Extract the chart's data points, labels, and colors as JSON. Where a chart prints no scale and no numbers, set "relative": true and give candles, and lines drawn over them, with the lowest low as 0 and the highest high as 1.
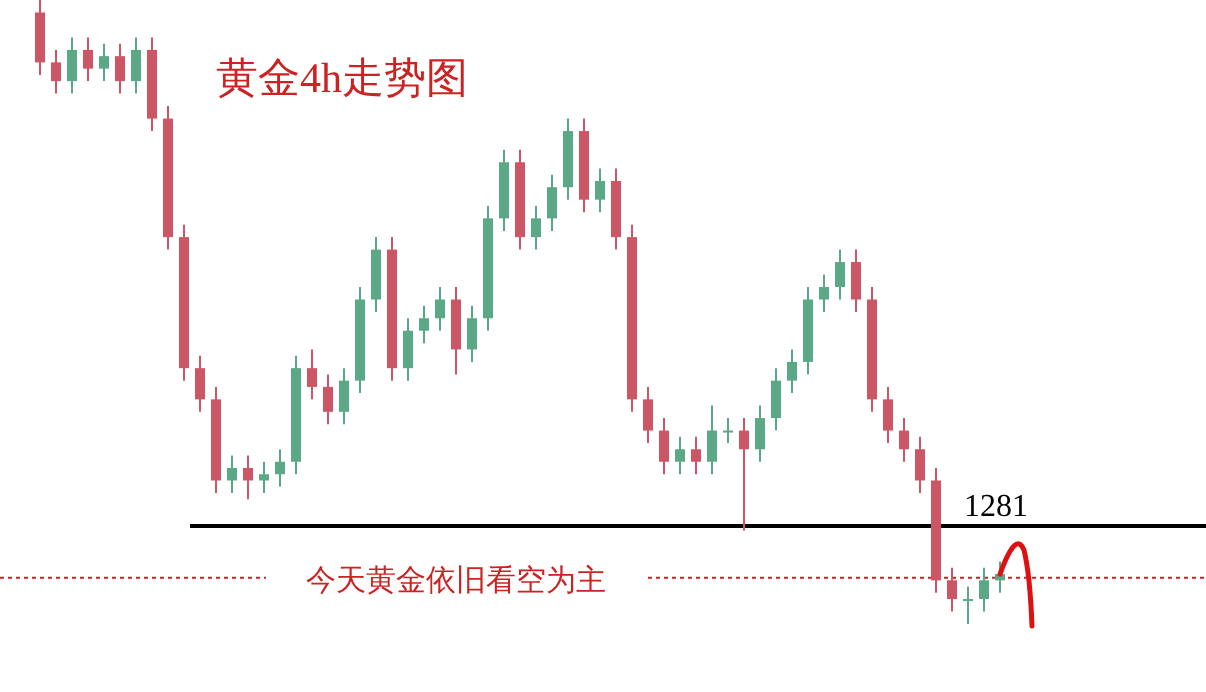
{
  "chart_data": {
    "type": "candlestick",
    "title": "黄金4h走势图",
    "relative": true,
    "categories": [
      null,
      null,
      null,
      null,
      null,
      null,
      null,
      null,
      null,
      null,
      null,
      null,
      null,
      null,
      null,
      null,
      null,
      null,
      null,
      null,
      null,
      null,
      null,
      null,
      null,
      null,
      null,
      null,
      null,
      null,
      null,
      null,
      null,
      null,
      null,
      null,
      null,
      null,
      null,
      null,
      null,
      null,
      null,
      null,
      null,
      null,
      null,
      null,
      null,
      null,
      null,
      null,
      null,
      null,
      null,
      null,
      null,
      null,
      null,
      null,
      null
    ],
    "ohlc": [
      [
        0.98,
        1.0,
        0.88,
        0.9
      ],
      [
        0.9,
        0.92,
        0.85,
        0.87
      ],
      [
        0.87,
        0.94,
        0.85,
        0.92
      ],
      [
        0.92,
        0.94,
        0.87,
        0.89
      ],
      [
        0.89,
        0.93,
        0.87,
        0.91
      ],
      [
        0.91,
        0.93,
        0.85,
        0.87
      ],
      [
        0.87,
        0.94,
        0.85,
        0.92
      ],
      [
        0.92,
        0.94,
        0.79,
        0.81
      ],
      [
        0.81,
        0.83,
        0.6,
        0.62
      ],
      [
        0.62,
        0.64,
        0.39,
        0.41
      ],
      [
        0.41,
        0.43,
        0.34,
        0.36
      ],
      [
        0.36,
        0.38,
        0.21,
        0.23
      ],
      [
        0.23,
        0.27,
        0.21,
        0.25
      ],
      [
        0.25,
        0.27,
        0.2,
        0.23
      ],
      [
        0.23,
        0.26,
        0.21,
        0.24
      ],
      [
        0.24,
        0.28,
        0.22,
        0.26
      ],
      [
        0.26,
        0.43,
        0.24,
        0.41
      ],
      [
        0.41,
        0.44,
        0.36,
        0.38
      ],
      [
        0.38,
        0.4,
        0.32,
        0.34
      ],
      [
        0.34,
        0.41,
        0.32,
        0.39
      ],
      [
        0.39,
        0.54,
        0.37,
        0.52
      ],
      [
        0.52,
        0.62,
        0.5,
        0.6
      ],
      [
        0.6,
        0.62,
        0.39,
        0.41
      ],
      [
        0.41,
        0.49,
        0.39,
        0.47
      ],
      [
        0.47,
        0.51,
        0.45,
        0.49
      ],
      [
        0.49,
        0.54,
        0.47,
        0.52
      ],
      [
        0.52,
        0.54,
        0.4,
        0.44
      ],
      [
        0.44,
        0.51,
        0.42,
        0.49
      ],
      [
        0.49,
        0.67,
        0.47,
        0.65
      ],
      [
        0.65,
        0.76,
        0.63,
        0.74
      ],
      [
        0.74,
        0.76,
        0.6,
        0.62
      ],
      [
        0.62,
        0.67,
        0.6,
        0.65
      ],
      [
        0.65,
        0.72,
        0.63,
        0.7
      ],
      [
        0.7,
        0.81,
        0.68,
        0.79
      ],
      [
        0.79,
        0.81,
        0.66,
        0.68
      ],
      [
        0.68,
        0.73,
        0.66,
        0.71
      ],
      [
        0.71,
        0.73,
        0.6,
        0.62
      ],
      [
        0.62,
        0.64,
        0.34,
        0.36
      ],
      [
        0.36,
        0.38,
        0.29,
        0.31
      ],
      [
        0.31,
        0.33,
        0.24,
        0.26
      ],
      [
        0.26,
        0.3,
        0.24,
        0.28
      ],
      [
        0.28,
        0.3,
        0.24,
        0.26
      ],
      [
        0.26,
        0.35,
        0.24,
        0.31
      ],
      [
        0.31,
        0.33,
        0.29,
        0.31
      ],
      [
        0.31,
        0.33,
        0.15,
        0.28
      ],
      [
        0.28,
        0.35,
        0.26,
        0.33
      ],
      [
        0.33,
        0.41,
        0.31,
        0.39
      ],
      [
        0.39,
        0.44,
        0.37,
        0.42
      ],
      [
        0.42,
        0.54,
        0.4,
        0.52
      ],
      [
        0.52,
        0.56,
        0.5,
        0.54
      ],
      [
        0.54,
        0.6,
        0.52,
        0.58
      ],
      [
        0.58,
        0.6,
        0.5,
        0.52
      ],
      [
        0.52,
        0.54,
        0.34,
        0.36
      ],
      [
        0.36,
        0.38,
        0.29,
        0.31
      ],
      [
        0.31,
        0.33,
        0.26,
        0.28
      ],
      [
        0.28,
        0.3,
        0.21,
        0.23
      ],
      [
        0.23,
        0.25,
        0.05,
        0.07
      ],
      [
        0.07,
        0.09,
        0.02,
        0.04
      ],
      [
        0.04,
        0.06,
        0,
        0.04
      ],
      [
        0.04,
        0.09,
        0.02,
        0.07
      ],
      [
        0.07,
        0.1,
        0.05,
        0.08
      ]
    ],
    "colors": [
      "#cc5566",
      "#cc5566",
      "#5aa886",
      "#cc5566",
      "#5aa886",
      "#cc5566",
      "#5aa886",
      "#cc5566",
      "#cc5566",
      "#cc5566",
      "#cc5566",
      "#cc5566",
      "#5aa886",
      "#cc5566",
      "#5aa886",
      "#5aa886",
      "#5aa886",
      "#cc5566",
      "#cc5566",
      "#5aa886",
      "#5aa886",
      "#5aa886",
      "#cc5566",
      "#5aa886",
      "#5aa886",
      "#5aa886",
      "#cc5566",
      "#5aa886",
      "#5aa886",
      "#5aa886",
      "#cc5566",
      "#5aa886",
      "#5aa886",
      "#5aa886",
      "#cc5566",
      "#5aa886",
      "#cc5566",
      "#cc5566",
      "#cc5566",
      "#cc5566",
      "#5aa886",
      "#cc5566",
      "#5aa886",
      "#5aa886",
      "#cc5566",
      "#5aa886",
      "#5aa886",
      "#5aa886",
      "#5aa886",
      "#5aa886",
      "#5aa886",
      "#cc5566",
      "#cc5566",
      "#cc5566",
      "#cc5566",
      "#cc5566",
      "#cc5566",
      "#cc5566",
      "#5aa886",
      "#5aa886",
      "#5aa886"
    ],
    "annotations": [
      "1281"
    ],
    "ref_lines": [
      {
        "axis": "y",
        "value": 0.157,
        "color": "#000000",
        "line_style": "solid"
      },
      {
        "axis": "y",
        "value": 0.074,
        "label": "今天黄金依旧看空为主",
        "color": "#cc2222",
        "line_style": "dotted"
      }
    ]
  }
}
